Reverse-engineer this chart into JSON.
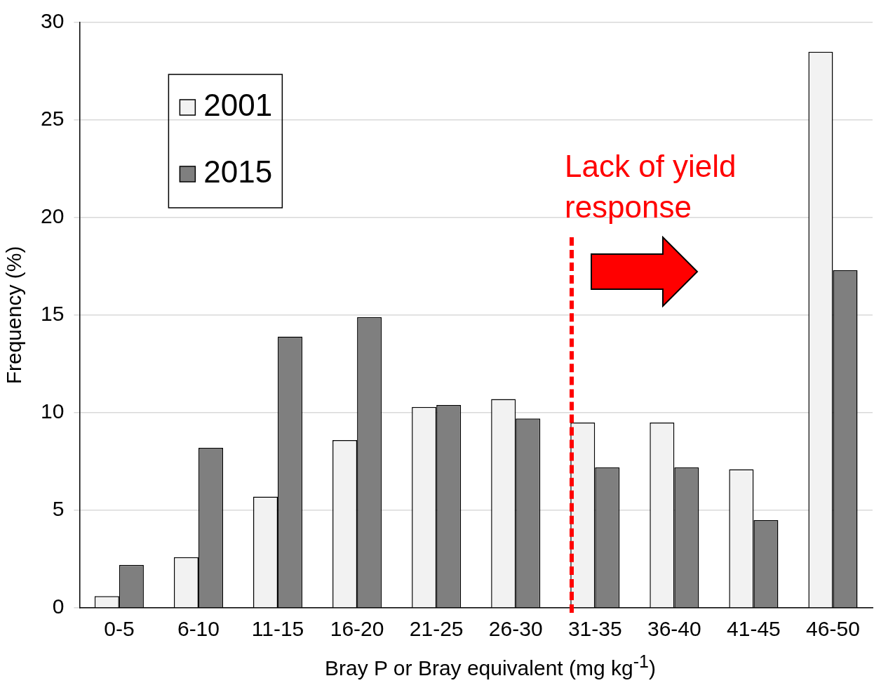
{
  "chart_data": {
    "type": "bar",
    "xlabel": "Bray P or Bray equivalent (mg kg$^{-1}$)",
    "ylabel": "Frequency (%)",
    "categories": [
      "0-5",
      "6-10",
      "11-15",
      "16-20",
      "21-25",
      "26-30",
      "31-35",
      "36-40",
      "41-45",
      "46-50"
    ],
    "series": [
      {
        "name": "2001",
        "color": "#f2f2f2",
        "values": [
          0.6,
          2.6,
          5.7,
          8.6,
          10.3,
          10.7,
          9.5,
          9.5,
          7.1,
          28.5
        ]
      },
      {
        "name": "2015",
        "color": "#7f7f7f",
        "values": [
          2.2,
          8.2,
          13.9,
          14.9,
          10.4,
          9.7,
          7.2,
          7.2,
          4.5,
          17.3
        ]
      }
    ],
    "ylim": [
      0,
      30
    ],
    "yticks": [
      0,
      5,
      10,
      15,
      20,
      25,
      30
    ],
    "grid": "y",
    "legend": "top left",
    "annotations": [
      "Lack of yield\nresponse"
    ]
  }
}
